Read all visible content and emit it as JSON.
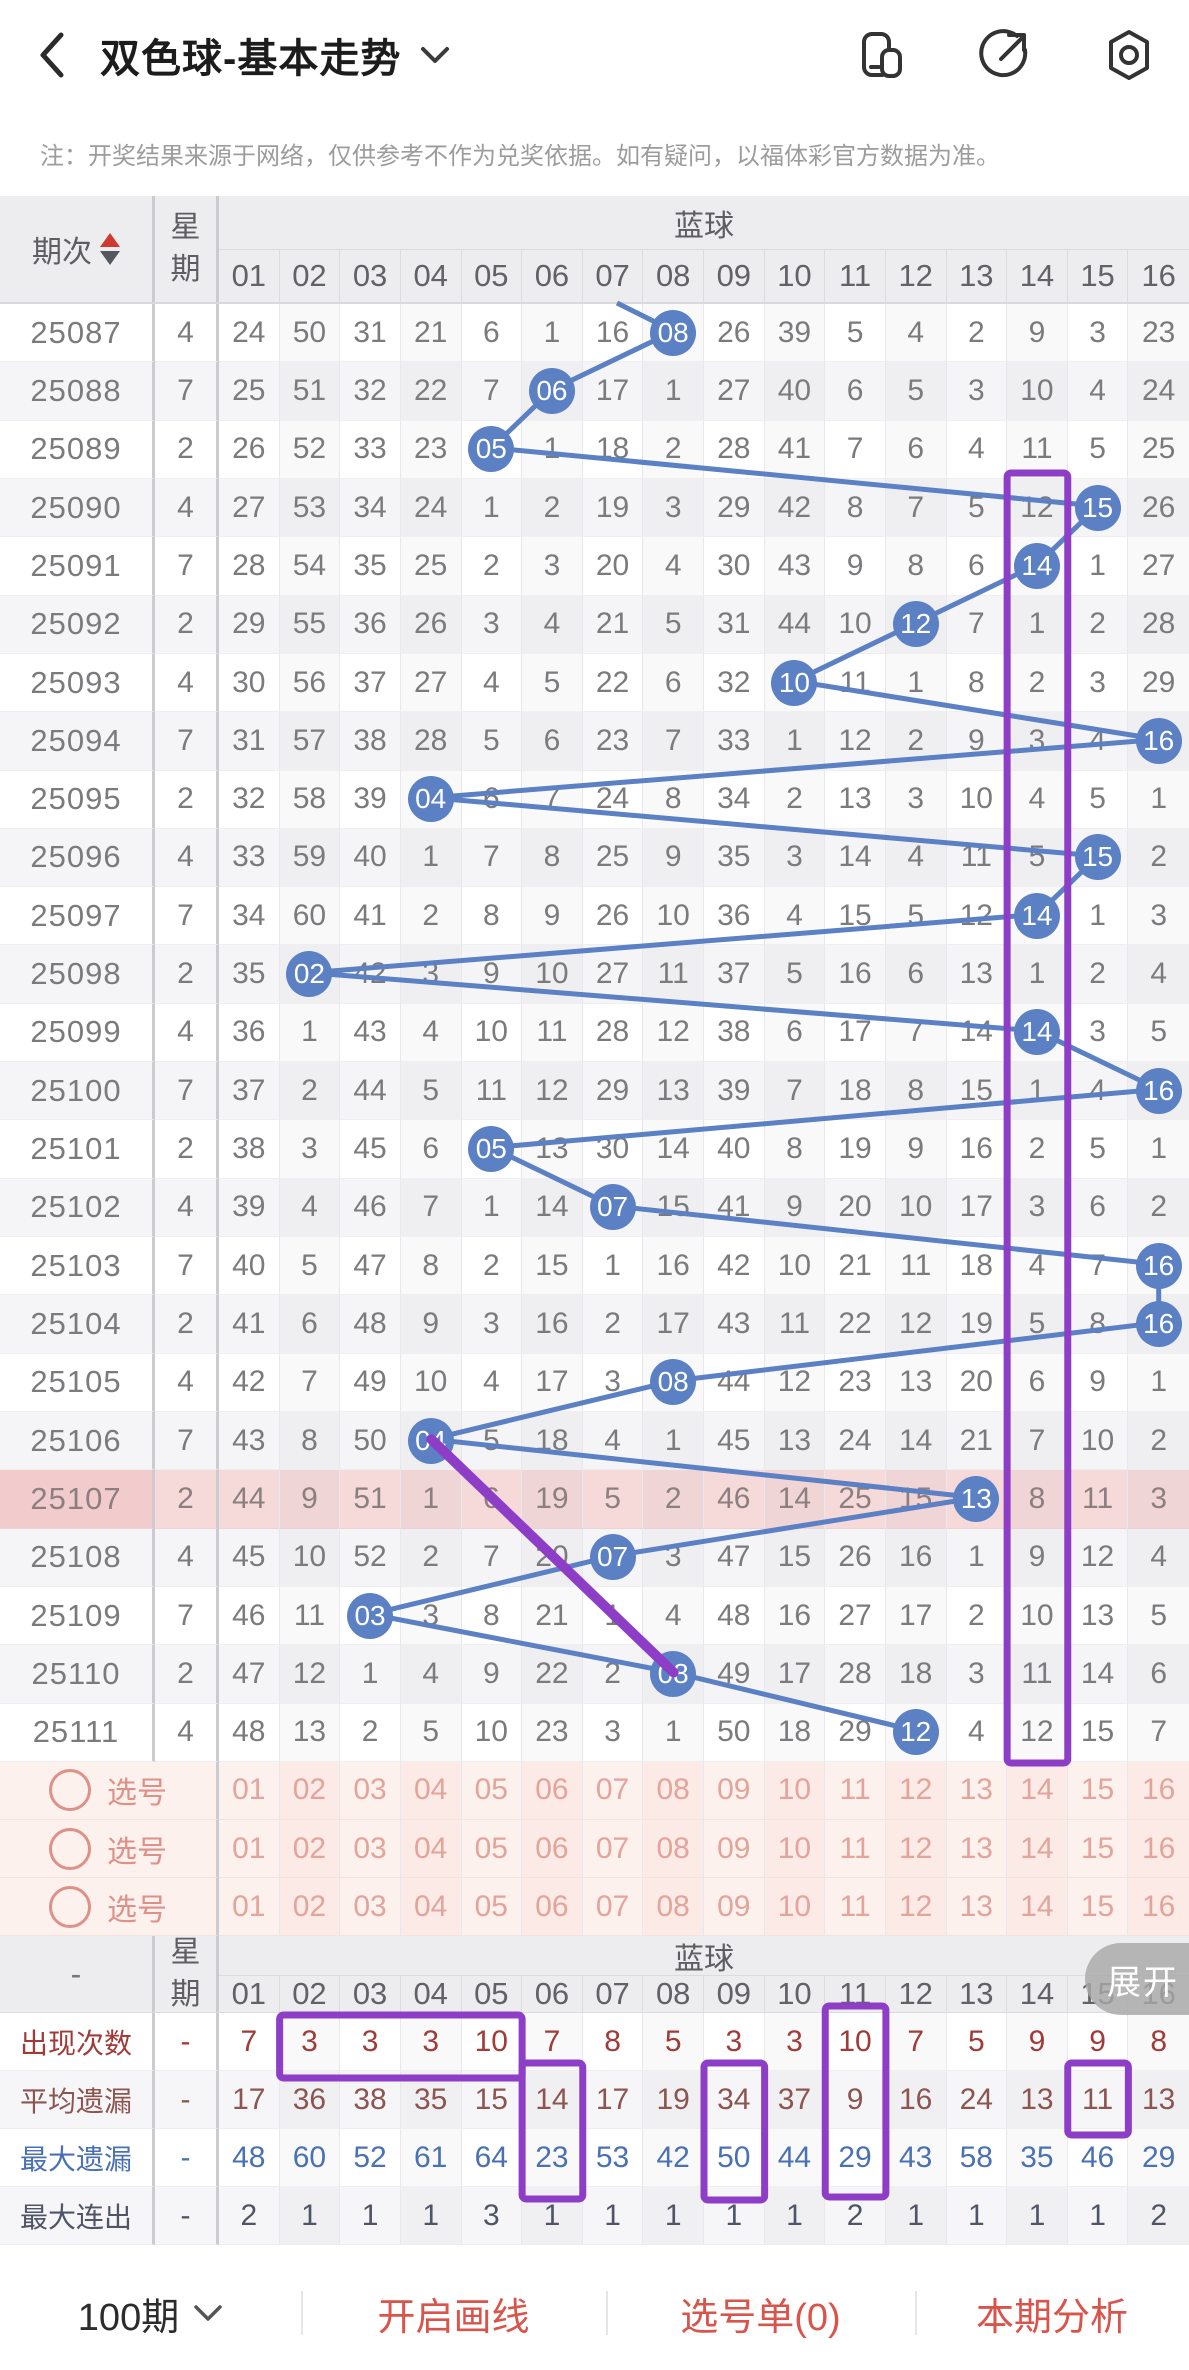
{
  "header": {
    "title": "双色球-基本走势",
    "icons": [
      "windows-icon",
      "share-icon",
      "settings-icon"
    ]
  },
  "notice": "注：开奖结果来源于网络，仅供参考不作为兑奖依据。如有疑问，以福体彩官方数据为准。",
  "table": {
    "period_label": "期次",
    "week_label": "星期",
    "group_label": "蓝球",
    "columns": [
      "01",
      "02",
      "03",
      "04",
      "05",
      "06",
      "07",
      "08",
      "09",
      "10",
      "11",
      "12",
      "13",
      "14",
      "15",
      "16"
    ],
    "rows": [
      {
        "period": "25087",
        "week": "4",
        "hit": 8,
        "values": [
          "24",
          "50",
          "31",
          "21",
          "6",
          "1",
          "16",
          "08",
          "26",
          "39",
          "5",
          "4",
          "2",
          "9",
          "3",
          "23"
        ]
      },
      {
        "period": "25088",
        "week": "7",
        "hit": 6,
        "values": [
          "25",
          "51",
          "32",
          "22",
          "7",
          "06",
          "17",
          "1",
          "27",
          "40",
          "6",
          "5",
          "3",
          "10",
          "4",
          "24"
        ]
      },
      {
        "period": "25089",
        "week": "2",
        "hit": 5,
        "values": [
          "26",
          "52",
          "33",
          "23",
          "05",
          "1",
          "18",
          "2",
          "28",
          "41",
          "7",
          "6",
          "4",
          "11",
          "5",
          "25"
        ]
      },
      {
        "period": "25090",
        "week": "4",
        "hit": 15,
        "values": [
          "27",
          "53",
          "34",
          "24",
          "1",
          "2",
          "19",
          "3",
          "29",
          "42",
          "8",
          "7",
          "5",
          "12",
          "15",
          "26"
        ]
      },
      {
        "period": "25091",
        "week": "7",
        "hit": 14,
        "values": [
          "28",
          "54",
          "35",
          "25",
          "2",
          "3",
          "20",
          "4",
          "30",
          "43",
          "9",
          "8",
          "6",
          "14",
          "1",
          "27"
        ]
      },
      {
        "period": "25092",
        "week": "2",
        "hit": 12,
        "values": [
          "29",
          "55",
          "36",
          "26",
          "3",
          "4",
          "21",
          "5",
          "31",
          "44",
          "10",
          "12",
          "7",
          "1",
          "2",
          "28"
        ]
      },
      {
        "period": "25093",
        "week": "4",
        "hit": 10,
        "values": [
          "30",
          "56",
          "37",
          "27",
          "4",
          "5",
          "22",
          "6",
          "32",
          "10",
          "11",
          "1",
          "8",
          "2",
          "3",
          "29"
        ]
      },
      {
        "period": "25094",
        "week": "7",
        "hit": 16,
        "values": [
          "31",
          "57",
          "38",
          "28",
          "5",
          "6",
          "23",
          "7",
          "33",
          "1",
          "12",
          "2",
          "9",
          "3",
          "4",
          "16"
        ]
      },
      {
        "period": "25095",
        "week": "2",
        "hit": 4,
        "values": [
          "32",
          "58",
          "39",
          "04",
          "6",
          "7",
          "24",
          "8",
          "34",
          "2",
          "13",
          "3",
          "10",
          "4",
          "5",
          "1"
        ]
      },
      {
        "period": "25096",
        "week": "4",
        "hit": 15,
        "values": [
          "33",
          "59",
          "40",
          "1",
          "7",
          "8",
          "25",
          "9",
          "35",
          "3",
          "14",
          "4",
          "11",
          "5",
          "15",
          "2"
        ]
      },
      {
        "period": "25097",
        "week": "7",
        "hit": 14,
        "values": [
          "34",
          "60",
          "41",
          "2",
          "8",
          "9",
          "26",
          "10",
          "36",
          "4",
          "15",
          "5",
          "12",
          "14",
          "1",
          "3"
        ]
      },
      {
        "period": "25098",
        "week": "2",
        "hit": 2,
        "values": [
          "35",
          "02",
          "42",
          "3",
          "9",
          "10",
          "27",
          "11",
          "37",
          "5",
          "16",
          "6",
          "13",
          "1",
          "2",
          "4"
        ]
      },
      {
        "period": "25099",
        "week": "4",
        "hit": 14,
        "values": [
          "36",
          "1",
          "43",
          "4",
          "10",
          "11",
          "28",
          "12",
          "38",
          "6",
          "17",
          "7",
          "14",
          "14",
          "3",
          "5"
        ]
      },
      {
        "period": "25100",
        "week": "7",
        "hit": 16,
        "values": [
          "37",
          "2",
          "44",
          "5",
          "11",
          "12",
          "29",
          "13",
          "39",
          "7",
          "18",
          "8",
          "15",
          "1",
          "4",
          "16"
        ]
      },
      {
        "period": "25101",
        "week": "2",
        "hit": 5,
        "values": [
          "38",
          "3",
          "45",
          "6",
          "05",
          "13",
          "30",
          "14",
          "40",
          "8",
          "19",
          "9",
          "16",
          "2",
          "5",
          "1"
        ]
      },
      {
        "period": "25102",
        "week": "4",
        "hit": 7,
        "values": [
          "39",
          "4",
          "46",
          "7",
          "1",
          "14",
          "07",
          "15",
          "41",
          "9",
          "20",
          "10",
          "17",
          "3",
          "6",
          "2"
        ]
      },
      {
        "period": "25103",
        "week": "7",
        "hit": 16,
        "values": [
          "40",
          "5",
          "47",
          "8",
          "2",
          "15",
          "1",
          "16",
          "42",
          "10",
          "21",
          "11",
          "18",
          "4",
          "7",
          "16"
        ]
      },
      {
        "period": "25104",
        "week": "2",
        "hit": 16,
        "values": [
          "41",
          "6",
          "48",
          "9",
          "3",
          "16",
          "2",
          "17",
          "43",
          "11",
          "22",
          "12",
          "19",
          "5",
          "8",
          "16"
        ]
      },
      {
        "period": "25105",
        "week": "4",
        "hit": 8,
        "values": [
          "42",
          "7",
          "49",
          "10",
          "4",
          "17",
          "3",
          "08",
          "44",
          "12",
          "23",
          "13",
          "20",
          "6",
          "9",
          "1"
        ]
      },
      {
        "period": "25106",
        "week": "7",
        "hit": 4,
        "values": [
          "43",
          "8",
          "50",
          "04",
          "5",
          "18",
          "4",
          "1",
          "45",
          "13",
          "24",
          "14",
          "21",
          "7",
          "10",
          "2"
        ]
      },
      {
        "period": "25107",
        "week": "2",
        "hit": 13,
        "highlight": true,
        "values": [
          "44",
          "9",
          "51",
          "1",
          "6",
          "19",
          "5",
          "2",
          "46",
          "14",
          "25",
          "15",
          "13",
          "8",
          "11",
          "3"
        ]
      },
      {
        "period": "25108",
        "week": "4",
        "hit": 7,
        "values": [
          "45",
          "10",
          "52",
          "2",
          "7",
          "20",
          "07",
          "3",
          "47",
          "15",
          "26",
          "16",
          "1",
          "9",
          "12",
          "4"
        ]
      },
      {
        "period": "25109",
        "week": "7",
        "hit": 3,
        "values": [
          "46",
          "11",
          "03",
          "3",
          "8",
          "21",
          "1",
          "4",
          "48",
          "16",
          "27",
          "17",
          "2",
          "10",
          "13",
          "5"
        ]
      },
      {
        "period": "25110",
        "week": "2",
        "hit": 8,
        "values": [
          "47",
          "12",
          "1",
          "4",
          "9",
          "22",
          "2",
          "08",
          "49",
          "17",
          "28",
          "18",
          "3",
          "11",
          "14",
          "6"
        ]
      },
      {
        "period": "25111",
        "week": "4",
        "hit": 12,
        "values": [
          "48",
          "13",
          "2",
          "5",
          "10",
          "23",
          "3",
          "1",
          "50",
          "18",
          "29",
          "12",
          "4",
          "12",
          "15",
          "7"
        ]
      }
    ],
    "pick_rows": {
      "label": "选号",
      "count": 3,
      "cells": [
        "01",
        "02",
        "03",
        "04",
        "05",
        "06",
        "07",
        "08",
        "09",
        "10",
        "11",
        "12",
        "13",
        "14",
        "15",
        "16"
      ]
    }
  },
  "stats": {
    "corner": "-",
    "week_label": "星期",
    "group_label": "蓝球",
    "expand_label": "展开",
    "rows": [
      {
        "label": "出现次数",
        "dash": "-",
        "cls": "c-red",
        "values": [
          "7",
          "3",
          "3",
          "3",
          "10",
          "7",
          "8",
          "5",
          "3",
          "3",
          "10",
          "7",
          "5",
          "9",
          "9",
          "8"
        ]
      },
      {
        "label": "平均遗漏",
        "dash": "-",
        "cls": "c-brown",
        "values": [
          "17",
          "36",
          "38",
          "35",
          "15",
          "14",
          "17",
          "19",
          "34",
          "37",
          "9",
          "16",
          "24",
          "13",
          "11",
          "13"
        ]
      },
      {
        "label": "最大遗漏",
        "dash": "-",
        "cls": "c-blue",
        "values": [
          "48",
          "60",
          "52",
          "61",
          "64",
          "23",
          "53",
          "42",
          "50",
          "44",
          "29",
          "43",
          "58",
          "35",
          "46",
          "29"
        ]
      },
      {
        "label": "最大连出",
        "dash": "-",
        "cls": "c-dark",
        "values": [
          "2",
          "1",
          "1",
          "1",
          "3",
          "1",
          "1",
          "1",
          "1",
          "1",
          "2",
          "1",
          "1",
          "1",
          "1",
          "2"
        ]
      }
    ]
  },
  "annotations": {
    "line_color": "#5b80c3",
    "purple_color": "#8e3ec6",
    "column_box": {
      "col": 14,
      "from_row_index": 3,
      "to_row_index": 24
    },
    "drawn_line": {
      "from": {
        "row_index": 19,
        "col": 4
      },
      "to": {
        "row_index": 23,
        "col": 8
      }
    },
    "stats_boxes": [
      {
        "row_from": 0,
        "row_to": 0,
        "col_from": 2,
        "col_to": 5
      },
      {
        "row_from": 1,
        "row_to": 2,
        "col_from": 6,
        "col_to": 6
      },
      {
        "row_from": 1,
        "row_to": 2,
        "col_from": 9,
        "col_to": 9
      },
      {
        "row_from": 0,
        "row_to": 2,
        "col_from": 11,
        "col_to": 11
      },
      {
        "row_from": 1,
        "row_to": 1,
        "col_from": 15,
        "col_to": 15
      }
    ]
  },
  "footer": {
    "items": [
      {
        "label": "100期",
        "chevron": true,
        "style": "dark"
      },
      {
        "label": "开启画线",
        "style": "red"
      },
      {
        "label": "选号单(0)",
        "style": "red"
      },
      {
        "label": "本期分析",
        "style": "red"
      }
    ]
  }
}
